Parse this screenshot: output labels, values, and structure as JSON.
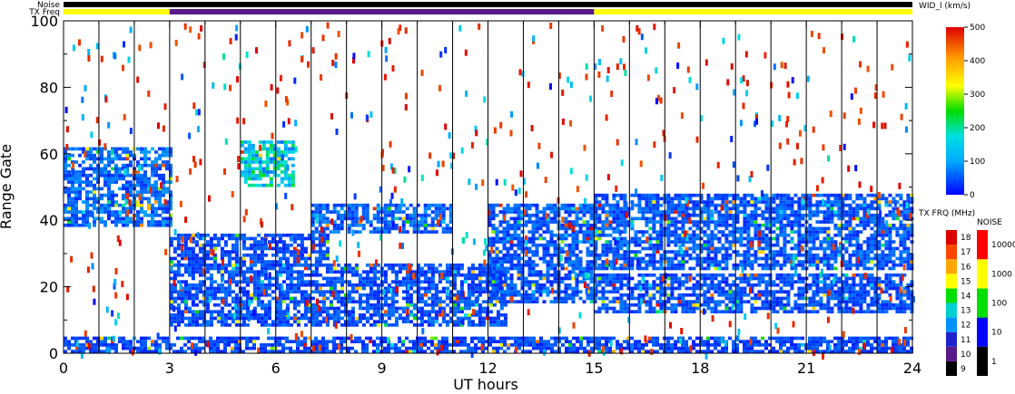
{
  "chart_data": [
    {
      "type": "heatmap",
      "name": "range-time-width",
      "xlabel": "UT hours",
      "ylabel": "Range Gate",
      "xlim": [
        0,
        24
      ],
      "ylim": [
        0,
        100
      ],
      "xticks": [
        0,
        3,
        6,
        9,
        12,
        15,
        18,
        21,
        24
      ],
      "xtick_labels": [
        "0",
        "3",
        "6",
        "9",
        "12",
        "15",
        "18",
        "21",
        "24"
      ],
      "yticks": [
        0,
        20,
        40,
        60,
        80,
        100
      ],
      "ytick_labels": [
        "0",
        "20",
        "40",
        "60",
        "80",
        "100"
      ],
      "scan_lines_hours": [
        1,
        2,
        3,
        4,
        5,
        6,
        7,
        8,
        9,
        10,
        11,
        12,
        13,
        14,
        15,
        16,
        17,
        18,
        19,
        20,
        21,
        22,
        23,
        24
      ],
      "grid": false,
      "colormap": "rainbow (blue=0, red=500 km/s)",
      "echo_regions": [
        {
          "t0": 0,
          "t1": 3,
          "g0": 38,
          "g1": 62,
          "mean": 60
        },
        {
          "t0": 3,
          "t1": 7.5,
          "g0": 26,
          "g1": 36,
          "mean": 40
        },
        {
          "t0": 3,
          "t1": 12.5,
          "g0": 8,
          "g1": 27,
          "mean": 45
        },
        {
          "t0": 0,
          "t1": 24,
          "g0": 0,
          "g1": 5,
          "mean": 40
        },
        {
          "t0": 7,
          "t1": 11,
          "g0": 36,
          "g1": 45,
          "mean": 55
        },
        {
          "t0": 12,
          "t1": 15,
          "g0": 15,
          "g1": 45,
          "mean": 50
        },
        {
          "t0": 15,
          "t1": 24,
          "g0": 25,
          "g1": 48,
          "mean": 50
        },
        {
          "t0": 15,
          "t1": 24,
          "g0": 12,
          "g1": 24,
          "mean": 45
        },
        {
          "t0": 5,
          "t1": 6.5,
          "g0": 50,
          "g1": 64,
          "mean": 150
        }
      ]
    },
    {
      "type": "bar",
      "name": "tx-frequency-strip",
      "label": "TX Freq",
      "segments": [
        {
          "t0": 0,
          "t1": 3,
          "value": 15,
          "color": "#ffff00"
        },
        {
          "t0": 3,
          "t1": 15,
          "value": 10,
          "color": "#5a1a8a"
        },
        {
          "t0": 15,
          "t1": 24,
          "value": 15,
          "color": "#ffff00"
        }
      ]
    },
    {
      "type": "bar",
      "name": "noise-strip",
      "label": "Noise",
      "segments": [
        {
          "t0": 0,
          "t1": 24,
          "value": 1,
          "color": "#000000"
        }
      ]
    }
  ],
  "colorbars": {
    "width": {
      "title": "WID_l (km/s)",
      "ticks": [
        "0",
        "100",
        "200",
        "300",
        "400",
        "500"
      ],
      "range": [
        0,
        500
      ]
    },
    "txfreq": {
      "title": "TX FRQ (MHz)",
      "ticks": [
        "9",
        "10",
        "11",
        "12",
        "13",
        "14",
        "15",
        "16",
        "17",
        "18"
      ],
      "colors": [
        "#000000",
        "#5a1a8a",
        "#2020cc",
        "#0090ff",
        "#00d0d0",
        "#00dd00",
        "#ffff00",
        "#ffa500",
        "#ff4500",
        "#dd0000"
      ]
    },
    "noise": {
      "title": "NOISE",
      "ticks": [
        "1",
        "10",
        "100",
        "1000",
        "10000"
      ],
      "colors": [
        "#000000",
        "#0000ff",
        "#00dd00",
        "#ffff00",
        "#ff0000"
      ]
    }
  },
  "strip_labels": {
    "noise": "Noise",
    "txfreq": "TX Freq"
  }
}
